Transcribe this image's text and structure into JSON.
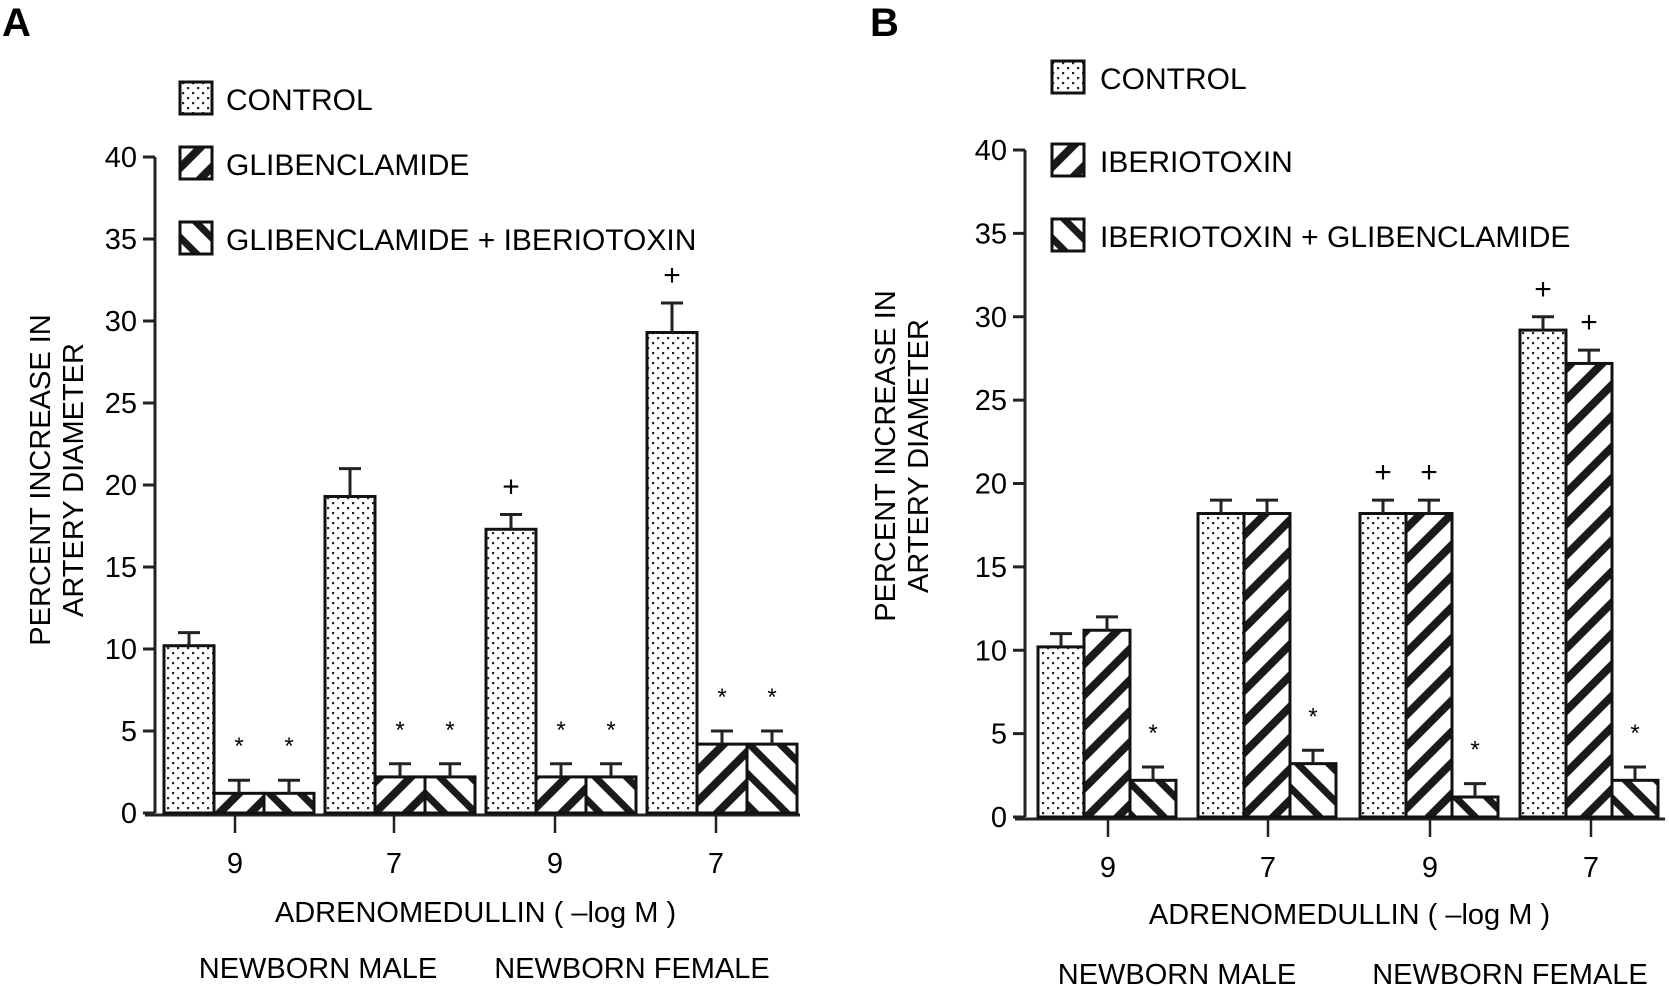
{
  "chart_data": [
    {
      "panel": "A",
      "type": "bar",
      "title": "",
      "ylabel": [
        "PERCENT INCREASE IN",
        "ARTERY DIAMETER"
      ],
      "xlabel": "ADRENOMEDULLIN ( –log M )",
      "group_labels": [
        "NEWBORN MALE",
        "NEWBORN FEMALE"
      ],
      "categories": [
        "9",
        "7",
        "9",
        "7"
      ],
      "ylim": [
        0,
        40
      ],
      "yticks": [
        "0",
        "5",
        "10",
        "15",
        "20",
        "25",
        "30",
        "35",
        "40"
      ],
      "grid": false,
      "legend_position": "top-left",
      "series": [
        {
          "name": "CONTROL",
          "pattern": "dots",
          "values": [
            10.2,
            19.3,
            17.3,
            29.3
          ],
          "errors": [
            0.8,
            1.7,
            0.9,
            1.8
          ],
          "annotations": [
            "",
            "",
            "+",
            "+"
          ]
        },
        {
          "name": "GLIBENCLAMIDE",
          "pattern": "hatch-down",
          "values": [
            1.2,
            2.2,
            2.2,
            4.2
          ],
          "errors": [
            0.8,
            0.8,
            0.8,
            0.8
          ],
          "annotations": [
            "*",
            "*",
            "*",
            "*"
          ]
        },
        {
          "name": "GLIBENCLAMIDE + IBERIOTOXIN",
          "pattern": "hatch-up",
          "values": [
            1.2,
            2.2,
            2.2,
            4.2
          ],
          "errors": [
            0.8,
            0.8,
            0.8,
            0.8
          ],
          "annotations": [
            "*",
            "*",
            "*",
            "*"
          ]
        }
      ]
    },
    {
      "panel": "B",
      "type": "bar",
      "title": "",
      "ylabel": [
        "PERCENT INCREASE IN",
        "ARTERY DIAMETER"
      ],
      "xlabel": "ADRENOMEDULLIN ( –log M )",
      "group_labels": [
        "NEWBORN MALE",
        "NEWBORN FEMALE"
      ],
      "categories": [
        "9",
        "7",
        "9",
        "7"
      ],
      "ylim": [
        0,
        40
      ],
      "yticks": [
        "0",
        "5",
        "10",
        "15",
        "20",
        "25",
        "30",
        "35",
        "40"
      ],
      "grid": false,
      "legend_position": "top-left",
      "series": [
        {
          "name": "CONTROL",
          "pattern": "dots",
          "values": [
            10.2,
            18.2,
            18.2,
            29.2
          ],
          "errors": [
            0.8,
            0.8,
            0.8,
            0.8
          ],
          "annotations": [
            "",
            "",
            "+",
            "+"
          ]
        },
        {
          "name": "IBERIOTOXIN",
          "pattern": "hatch-down",
          "values": [
            11.2,
            18.2,
            18.2,
            27.2
          ],
          "errors": [
            0.8,
            0.8,
            0.8,
            0.8
          ],
          "annotations": [
            "",
            "",
            "+",
            "+"
          ]
        },
        {
          "name": "IBERIOTOXIN + GLIBENCLAMIDE",
          "pattern": "hatch-up",
          "values": [
            2.2,
            3.2,
            1.2,
            2.2
          ],
          "errors": [
            0.8,
            0.8,
            0.8,
            0.8
          ],
          "annotations": [
            "*",
            "*",
            "*",
            "*"
          ]
        }
      ]
    }
  ]
}
